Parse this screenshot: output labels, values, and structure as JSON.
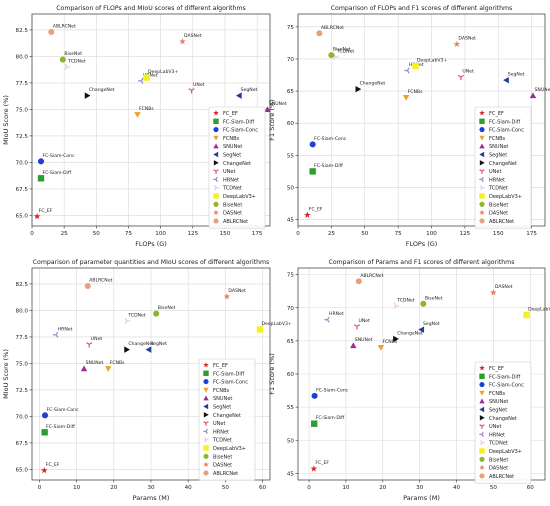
{
  "colors": {
    "FC_EF": "#d62728",
    "FC-Siam-Diff": "#2ca02c",
    "FC-Siam-Conc": "#1f3fd6",
    "FCNBs": "#f0a030",
    "SNUNet": "#9b2d9b",
    "SegNet": "#1f3f9f",
    "ChangeNet": "#111111",
    "UNet": "#e0607a",
    "HRNet": "#9a8fc8",
    "TCDNet": "#f2c6e4",
    "DeepLabV3+": "#f5f020",
    "BiseNet": "#8ab82a",
    "DASNet": "#e8845a",
    "ABLRCNet": "#e6a07a"
  },
  "markers": {
    "FC_EF": "star",
    "FC-Siam-Diff": "square",
    "FC-Siam-Conc": "circle",
    "FCNBs": "tri-down",
    "SNUNet": "tri-up",
    "SegNet": "tri-left",
    "ChangeNet": "tri-right",
    "UNet": "y-down",
    "HRNet": "y-left",
    "TCDNet": "y-right",
    "DeepLabV3+": "square",
    "BiseNet": "circle",
    "DASNet": "star",
    "ABLRCNet": "circle"
  },
  "chart_data": [
    {
      "type": "scatter",
      "title": "Comparison of FLOPs and MIoU scores of different algorithms",
      "xlabel": "FLOPs (G)",
      "ylabel": "MIoU Score (%)",
      "xlim": [
        0,
        185
      ],
      "ylim": [
        64,
        84
      ],
      "xticks": [
        0,
        25,
        50,
        75,
        100,
        125,
        150,
        175
      ],
      "yticks": [
        65.0,
        67.5,
        70.0,
        72.5,
        75.0,
        77.5,
        80.0,
        82.5
      ],
      "ytick_labels": [
        "65.0",
        "67.5",
        "70.0",
        "72.5",
        "75.0",
        "77.5",
        "80.0",
        "82.5"
      ],
      "grid": true,
      "legend_position": "lower right",
      "points": [
        {
          "name": "FC_EF",
          "x": 4,
          "y": 64.9
        },
        {
          "name": "FC-Siam-Diff",
          "x": 7,
          "y": 68.5
        },
        {
          "name": "FC-Siam-Conc",
          "x": 7,
          "y": 70.1
        },
        {
          "name": "FCNBs",
          "x": 82,
          "y": 74.5
        },
        {
          "name": "SNUNet",
          "x": 183,
          "y": 75.0
        },
        {
          "name": "SegNet",
          "x": 161,
          "y": 76.3
        },
        {
          "name": "ChangeNet",
          "x": 43,
          "y": 76.3
        },
        {
          "name": "UNet",
          "x": 124,
          "y": 76.8
        },
        {
          "name": "HRNet",
          "x": 85,
          "y": 77.7
        },
        {
          "name": "TCDNet",
          "x": 27,
          "y": 79.0
        },
        {
          "name": "DeepLabV3+",
          "x": 89,
          "y": 78.0
        },
        {
          "name": "BiseNet",
          "x": 24,
          "y": 79.7
        },
        {
          "name": "DASNet",
          "x": 117,
          "y": 81.4
        },
        {
          "name": "ABLRCNet",
          "x": 15,
          "y": 82.3
        }
      ]
    },
    {
      "type": "scatter",
      "title": "Comparison of FLOPs and F1 scores of different algorithms",
      "xlabel": "FLOPs (G)",
      "ylabel": "F1 Score (%)",
      "xlim": [
        0,
        185
      ],
      "ylim": [
        44,
        77
      ],
      "xticks": [
        0,
        25,
        50,
        75,
        100,
        125,
        150,
        175
      ],
      "yticks": [
        45,
        50,
        55,
        60,
        65,
        70,
        75
      ],
      "ytick_labels": [
        "45",
        "50",
        "55",
        "60",
        "65",
        "70",
        "75"
      ],
      "grid": true,
      "legend_position": "lower right",
      "points": [
        {
          "name": "FC_EF",
          "x": 7,
          "y": 45.7
        },
        {
          "name": "FC-Siam-Diff",
          "x": 11,
          "y": 52.5
        },
        {
          "name": "FC-Siam-Conc",
          "x": 11,
          "y": 56.7
        },
        {
          "name": "FCNBs",
          "x": 81,
          "y": 64.0
        },
        {
          "name": "SNUNet",
          "x": 176,
          "y": 64.3
        },
        {
          "name": "SegNet",
          "x": 156,
          "y": 66.7
        },
        {
          "name": "ChangeNet",
          "x": 45,
          "y": 65.3
        },
        {
          "name": "UNet",
          "x": 122,
          "y": 67.2
        },
        {
          "name": "HRNet",
          "x": 82,
          "y": 68.2
        },
        {
          "name": "TCDNet",
          "x": 28,
          "y": 70.3
        },
        {
          "name": "DeepLabV3+",
          "x": 88,
          "y": 68.9
        },
        {
          "name": "BiseNet",
          "x": 25,
          "y": 70.6
        },
        {
          "name": "DASNet",
          "x": 119,
          "y": 72.3
        },
        {
          "name": "ABLRCNet",
          "x": 16,
          "y": 74.0
        }
      ]
    },
    {
      "type": "scatter",
      "title": "Comparison of parameter quantities and MIoU scores of different algorithms",
      "xlabel": "Params (M)",
      "ylabel": "MIoU Score (%)",
      "xlim": [
        -2,
        62
      ],
      "ylim": [
        64,
        84
      ],
      "xticks": [
        0,
        10,
        20,
        30,
        40,
        50,
        60
      ],
      "yticks": [
        65.0,
        67.5,
        70.0,
        72.5,
        75.0,
        77.5,
        80.0,
        82.5
      ],
      "ytick_labels": [
        "65.0",
        "67.5",
        "70.0",
        "72.5",
        "75.0",
        "77.5",
        "80.0",
        "82.5"
      ],
      "grid": true,
      "legend_position": "lower right",
      "points": [
        {
          "name": "FC_EF",
          "x": 1.3,
          "y": 64.9
        },
        {
          "name": "FC-Siam-Diff",
          "x": 1.4,
          "y": 68.5
        },
        {
          "name": "FC-Siam-Conc",
          "x": 1.5,
          "y": 70.1
        },
        {
          "name": "FCNBs",
          "x": 18.5,
          "y": 74.5
        },
        {
          "name": "SNUNet",
          "x": 12.0,
          "y": 74.5
        },
        {
          "name": "SegNet",
          "x": 29.4,
          "y": 76.3
        },
        {
          "name": "ChangeNet",
          "x": 23.5,
          "y": 76.3
        },
        {
          "name": "UNet",
          "x": 13.4,
          "y": 76.8
        },
        {
          "name": "HRNet",
          "x": 4.5,
          "y": 77.7
        },
        {
          "name": "TCDNet",
          "x": 23.5,
          "y": 79.0
        },
        {
          "name": "DeepLabV3+",
          "x": 59.3,
          "y": 78.2
        },
        {
          "name": "BiseNet",
          "x": 31.4,
          "y": 79.7
        },
        {
          "name": "DASNet",
          "x": 50.4,
          "y": 81.3
        },
        {
          "name": "ABLRCNet",
          "x": 13.0,
          "y": 82.3
        }
      ]
    },
    {
      "type": "scatter",
      "title": "Comparison of Params and F1 scores of different algorithms",
      "xlabel": "Params (M)",
      "ylabel": "F1 Score (%)",
      "xlim": [
        -3,
        64
      ],
      "ylim": [
        44,
        76
      ],
      "xticks": [
        0,
        10,
        20,
        30,
        40,
        50,
        60
      ],
      "yticks": [
        45,
        50,
        55,
        60,
        65,
        70,
        75
      ],
      "ytick_labels": [
        "45",
        "50",
        "55",
        "60",
        "65",
        "70",
        "75"
      ],
      "grid": true,
      "legend_position": "lower right",
      "points": [
        {
          "name": "FC_EF",
          "x": 1.3,
          "y": 45.7
        },
        {
          "name": "FC-Siam-Diff",
          "x": 1.4,
          "y": 52.5
        },
        {
          "name": "FC-Siam-Conc",
          "x": 1.5,
          "y": 56.7
        },
        {
          "name": "FCNBs",
          "x": 19.5,
          "y": 64.0
        },
        {
          "name": "SNUNet",
          "x": 12.0,
          "y": 64.3
        },
        {
          "name": "SegNet",
          "x": 30.5,
          "y": 66.7
        },
        {
          "name": "ChangeNet",
          "x": 23.5,
          "y": 65.3
        },
        {
          "name": "UNet",
          "x": 13.0,
          "y": 67.2
        },
        {
          "name": "HRNet",
          "x": 5.0,
          "y": 68.2
        },
        {
          "name": "TCDNet",
          "x": 23.5,
          "y": 70.3
        },
        {
          "name": "DeepLabV3+",
          "x": 59.0,
          "y": 68.9
        },
        {
          "name": "BiseNet",
          "x": 31.0,
          "y": 70.6
        },
        {
          "name": "DASNet",
          "x": 50.0,
          "y": 72.3
        },
        {
          "name": "ABLRCNet",
          "x": 13.5,
          "y": 74.0
        }
      ]
    }
  ],
  "legend_order": [
    "FC_EF",
    "FC-Siam-Diff",
    "FC-Siam-Conc",
    "FCNBs",
    "SNUNet",
    "SegNet",
    "ChangeNet",
    "UNet",
    "HRNet",
    "TCDNet",
    "DeepLabV3+",
    "BiseNet",
    "DASNet",
    "ABLRCNet"
  ]
}
